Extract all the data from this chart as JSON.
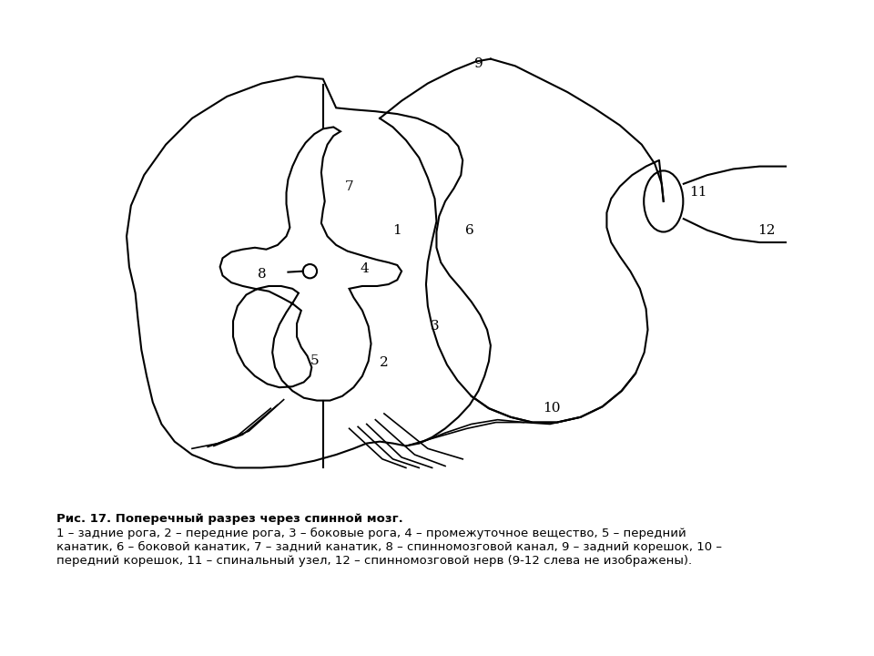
{
  "title": "",
  "caption_line1": "Рис. 17. Поперечный разрез через спинной мозг.",
  "caption_line2": "1 – задние рога, 2 – передние рога, 3 – боковые рога, 4 – промежуточное вещество, 5 – передний",
  "caption_line3": "канатик, 6 – боковой канатик, 7 – задний канатик, 8 – спинномозговой канал, 9 – задний корешок, 10 –",
  "caption_line4": "передний корешок, 11 – спинальный узел, 12 – спинномозговой нерв (9-12 слева не изображены).",
  "bg_color": "#ffffff",
  "line_color": "#000000",
  "label_color": "#000000",
  "label_fontsize": 11
}
